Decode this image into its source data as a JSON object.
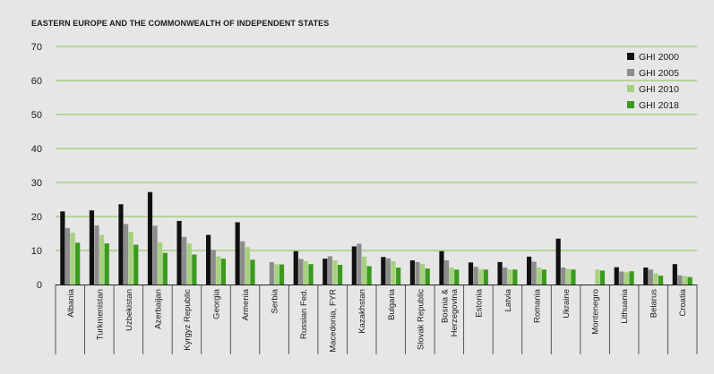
{
  "chart_data": {
    "type": "bar",
    "title": "EASTERN EUROPE AND THE COMMONWEALTH OF INDEPENDENT STATES",
    "xlabel": "",
    "ylabel": "",
    "ylim": [
      0,
      70
    ],
    "yticks": [
      0,
      10,
      20,
      30,
      40,
      50,
      60,
      70
    ],
    "grid": true,
    "legend_position": "top-right",
    "categories": [
      "Albania",
      "Turkmenistan",
      "Uzbekistan",
      "Azerbaijan",
      "Kyrgyz Republic",
      "Georgia",
      "Armenia",
      "Serbia",
      "Russian Fed.",
      "Macedonia, FYR",
      "Kazakhstan",
      "Bulgaria",
      "Slovak Republic",
      "Bosnia &\nHerzegovina",
      "Estonia",
      "Latvia",
      "Romania",
      "Ukraine",
      "Montenegro",
      "Lithuania",
      "Belarus",
      "Croatia"
    ],
    "series": [
      {
        "name": "GHI 2000",
        "color": "#111111",
        "values": [
          21.5,
          21.8,
          23.6,
          27.2,
          18.7,
          14.6,
          18.3,
          null,
          9.8,
          7.6,
          11.2,
          8.1,
          7.1,
          9.8,
          6.5,
          6.6,
          8.2,
          13.5,
          null,
          5.1,
          5.0,
          6.0
        ]
      },
      {
        "name": "GHI 2005",
        "color": "#8c8c8c",
        "values": [
          16.6,
          17.4,
          17.8,
          17.3,
          14.0,
          10.2,
          12.7,
          6.6,
          7.5,
          8.3,
          12.0,
          7.7,
          6.6,
          7.1,
          5.2,
          5.0,
          6.7,
          5.0,
          null,
          3.8,
          4.4,
          2.7
        ]
      },
      {
        "name": "GHI 2010",
        "color": "#a6d17e",
        "values": [
          15.2,
          14.6,
          15.5,
          12.4,
          12.1,
          8.3,
          11.0,
          6.0,
          6.9,
          7.1,
          8.2,
          6.9,
          6.1,
          5.0,
          4.5,
          4.4,
          5.0,
          4.6,
          4.4,
          3.6,
          3.3,
          2.5
        ]
      },
      {
        "name": "GHI 2018",
        "color": "#3a9a1c",
        "values": [
          12.3,
          12.1,
          11.7,
          9.3,
          8.8,
          7.6,
          7.3,
          5.9,
          6.0,
          5.8,
          5.4,
          5.0,
          4.7,
          4.4,
          4.4,
          4.4,
          4.4,
          4.4,
          4.1,
          3.9,
          2.6,
          2.2
        ]
      }
    ]
  }
}
